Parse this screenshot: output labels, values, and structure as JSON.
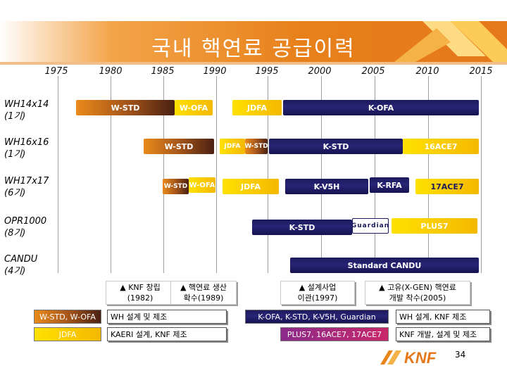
{
  "title": "국내 핵연료 공급이력",
  "years": [
    "1975",
    "1980",
    "1985",
    "1990",
    "1995",
    "2000",
    "2005",
    "2010",
    "2015"
  ],
  "rows": [
    {
      "name": "WH14x14",
      "count": "(1기)"
    },
    {
      "name": "WH16x16",
      "count": "(1기)"
    },
    {
      "name": "WH17x17",
      "count": "(6기)"
    },
    {
      "name": "OPR1000",
      "count": "(8기)"
    },
    {
      "name": "CANDU",
      "count": "(4기)"
    }
  ],
  "bars": {
    "r1_wstd": "W-STD",
    "r1_wofa": "W-OFA",
    "r1_jdfa": "JDFA",
    "r1_kofa": "K-OFA",
    "r2_wstd": "W-STD",
    "r2_jdfa": "JDFA",
    "r2_wstd2": "W-STD",
    "r2_kstd": "K-STD",
    "r2_16ace7": "16ACE7",
    "r3_wstd": "W-STD",
    "r3_wofa": "W-OFA",
    "r3_jdfa": "JDFA",
    "r3_kv5h": "K-V5H",
    "r3_krfa": "K-RFA",
    "r3_17ace7": "17ACE7",
    "r4_kstd": "K-STD",
    "r4_guardian": "Guardian",
    "r4_plus7": "PLUS7",
    "r5_candu": "Standard CANDU"
  },
  "annotations": [
    {
      "text": "▲ KNF 창립\n(1982)"
    },
    {
      "text": "▲ 핵연료 생산\n확수(1989)"
    },
    {
      "text": "▲ 설계사업\n이관(1997)"
    },
    {
      "text": "▲ 고유(X-GEN) 핵연료\n개발 착수(2005)"
    }
  ],
  "legend": {
    "sw1": "W-STD, W-OFA",
    "box1": "WH 설계 및 제조",
    "sw2": "JDFA",
    "box2": "KAERI 설계, KNF 제조",
    "sw3": "K-OFA, K-STD, K-V5H,  Guardian",
    "box3": "WH 설계, KNF 제조",
    "sw4": "PLUS7, 16ACE7, 17ACE7",
    "box4": "KNF 개발, 설계 및 제조"
  },
  "page_number": "34",
  "logo_text": "KNF",
  "colors": {
    "navy": "#1c1a5c",
    "orange": "#e98a1a",
    "brown": "#4a2012",
    "yellow": "#ffd200",
    "banner": "#e8861c"
  }
}
